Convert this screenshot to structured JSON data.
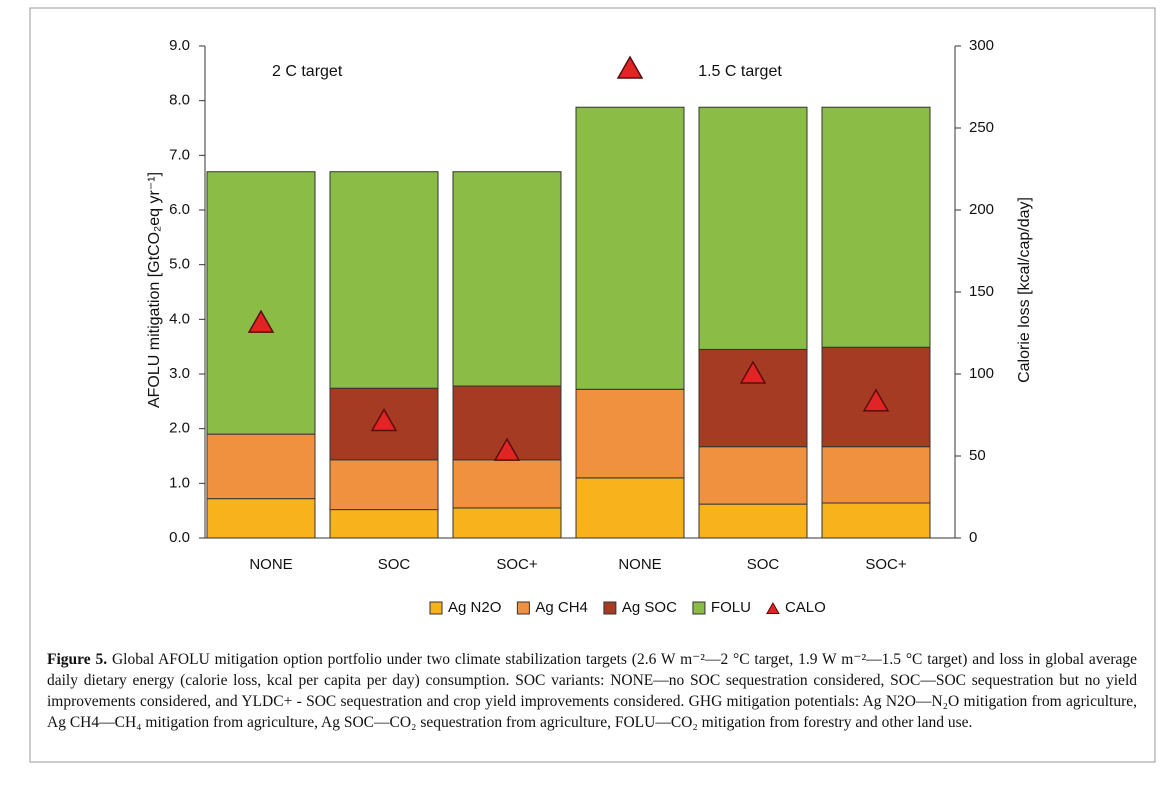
{
  "chart_data": {
    "type": "stacked_bar",
    "y_label": "AFOLU mitigation [GtCO₂eq yr⁻¹]",
    "y2_label": "Calorie loss [kcal/cap/day]",
    "annotations": [
      "2 C target",
      "1.5 C target"
    ],
    "categories": [
      "NONE",
      "SOC",
      "SOC+",
      "NONE",
      "SOC",
      "SOC+"
    ],
    "series": [
      {
        "name": "Ag N2O",
        "color": "#f7b21c",
        "values": [
          0.72,
          0.52,
          0.55,
          1.1,
          0.62,
          0.64
        ]
      },
      {
        "name": "Ag CH4",
        "color": "#f0913f",
        "values": [
          1.18,
          0.91,
          0.88,
          1.62,
          1.05,
          1.03
        ]
      },
      {
        "name": "Ag SOC",
        "color": "#a63b24",
        "values": [
          0,
          1.31,
          1.35,
          0,
          1.78,
          1.82
        ]
      },
      {
        "name": "FOLU",
        "color": "#8bbd46",
        "values": [
          4.8,
          3.96,
          3.92,
          5.16,
          4.43,
          4.39
        ]
      },
      {
        "name": "CALO",
        "color": "#e12424",
        "axis": "y2",
        "marker": "triangle",
        "values": [
          131,
          71,
          53,
          286,
          100,
          83
        ]
      }
    ],
    "ylim": [
      0,
      9
    ],
    "yticks": [
      {
        "value": 0,
        "label": "0.0"
      },
      {
        "value": 1,
        "label": "1.0"
      },
      {
        "value": 2,
        "label": "2.0"
      },
      {
        "value": 3,
        "label": "3.0"
      },
      {
        "value": 4,
        "label": "4.0"
      },
      {
        "value": 5,
        "label": "5.0"
      },
      {
        "value": 6,
        "label": "6.0"
      },
      {
        "value": 7,
        "label": "7.0"
      },
      {
        "value": 8,
        "label": "8.0"
      },
      {
        "value": 9,
        "label": "9.0"
      }
    ],
    "y2lim": [
      0,
      300
    ],
    "y2ticks": [
      0,
      50,
      100,
      150,
      200,
      250,
      300
    ],
    "legend": "bottom"
  },
  "caption": {
    "label": "Figure 5.",
    "text": "Global AFOLU mitigation option portfolio under two climate stabilization targets (2.6 W m⁻²—2 °C target, 1.9 W m⁻²—1.5 °C target) and loss in global average daily dietary energy (calorie loss, kcal per capita per day) consumption. SOC variants: NONE—no SOC sequestration considered, SOC—SOC sequestration but no yield improvements considered, and YLDC+ - SOC sequestration and crop yield improvements considered. GHG mitigation potentials: Ag N2O—N₂O mitigation from agriculture, Ag CH4—CH₄ mitigation from agriculture, Ag SOC—CO₂ sequestration from agriculture, FOLU—CO₂ mitigation from forestry and other land use."
  }
}
